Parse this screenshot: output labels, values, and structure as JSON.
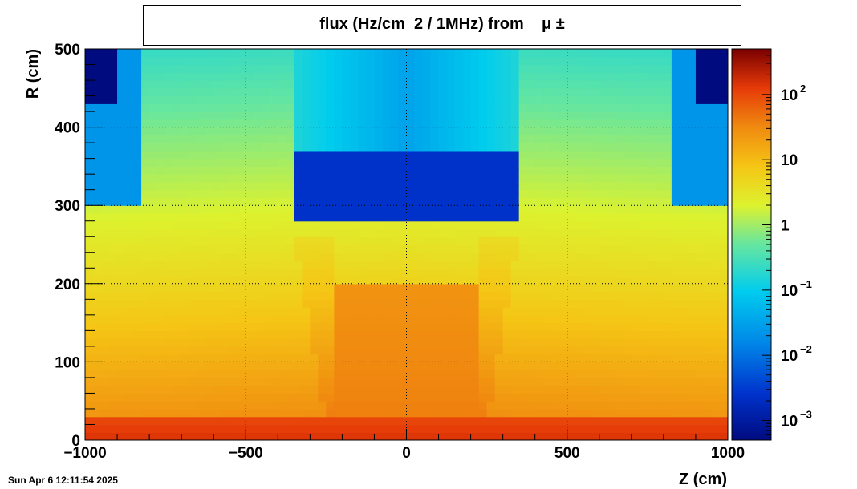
{
  "chart_data": {
    "type": "heatmap",
    "title": "flux (Hz/cm  2 / 1MHz) from    μ ±",
    "xlabel": "Z (cm)",
    "ylabel": "R (cm)",
    "xlim": [
      -1000,
      1000
    ],
    "ylim": [
      0,
      500
    ],
    "x_ticks": [
      -1000,
      -500,
      0,
      500,
      1000
    ],
    "x_tick_labels": [
      "−1000",
      "−500",
      "0",
      "500",
      "1000"
    ],
    "y_ticks": [
      0,
      100,
      200,
      300,
      400,
      500
    ],
    "y_tick_labels": [
      "0",
      "100",
      "200",
      "300",
      "400",
      "500"
    ],
    "z_scale": "log",
    "zlim": [
      0.0005,
      500
    ],
    "z_ticks": [
      0.001,
      0.01,
      0.1,
      1,
      10,
      100
    ],
    "z_tick_labels": [
      {
        "base": "10",
        "exp": "−3"
      },
      {
        "base": "10",
        "exp": "−2"
      },
      {
        "base": "10",
        "exp": "−1"
      },
      {
        "base": "1",
        "exp": ""
      },
      {
        "base": "10",
        "exp": ""
      },
      {
        "base": "10",
        "exp": "2"
      }
    ],
    "grid": true,
    "colormap": "rainbow",
    "regions": [
      {
        "z_range": [
          -1000,
          1000
        ],
        "r_range": [
          0,
          30
        ],
        "value": 150
      },
      {
        "z_range": [
          -230,
          230
        ],
        "r_range": [
          0,
          200
        ],
        "value": 40
      },
      {
        "z_range": [
          -350,
          350
        ],
        "r_range": [
          280,
          370
        ],
        "value": 0.05
      },
      {
        "z_range": [
          -1000,
          -900
        ],
        "r_range": [
          430,
          500
        ],
        "value": 0.003
      },
      {
        "z_range": [
          900,
          1000
        ],
        "r_range": [
          430,
          500
        ],
        "value": 0.003
      },
      {
        "z_range": [
          -1000,
          -820
        ],
        "r_range": [
          300,
          500
        ],
        "value": 0.15
      },
      {
        "z_range": [
          820,
          1000
        ],
        "r_range": [
          300,
          500
        ],
        "value": 0.15
      }
    ]
  },
  "timestamp": "Sun Apr  6 12:11:54 2025"
}
